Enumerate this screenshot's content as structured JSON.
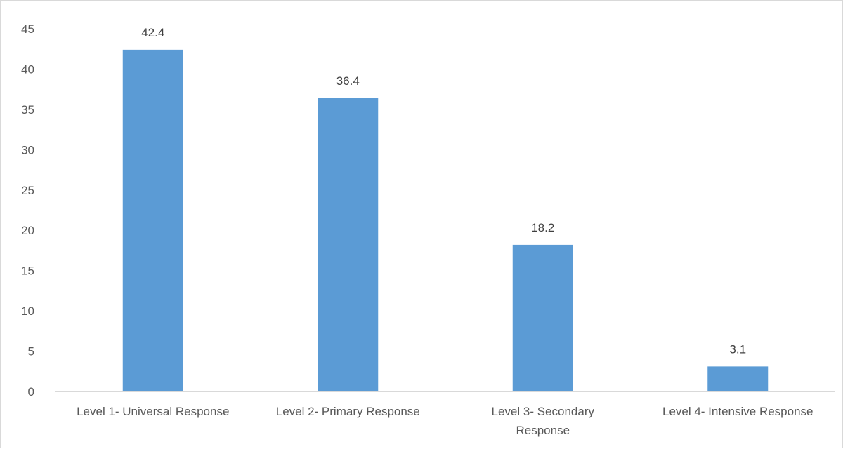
{
  "chart_data": {
    "type": "bar",
    "categories": [
      [
        "Level 1- Universal Response"
      ],
      [
        "Level 2- Primary Response"
      ],
      [
        "Level 3- Secondary",
        "Response"
      ],
      [
        "Level 4- Intensive Response"
      ]
    ],
    "values": [
      42.4,
      36.4,
      18.2,
      3.1
    ],
    "value_labels": [
      "42.4",
      "36.4",
      "18.2",
      "3.1"
    ],
    "yticks": [
      "0",
      "5",
      "10",
      "15",
      "20",
      "25",
      "30",
      "35",
      "40",
      "45"
    ],
    "ylim": [
      0,
      45
    ],
    "bar_color": "#5b9bd5",
    "axis_color": "#d9d9d9",
    "grid": false,
    "legend": "none"
  }
}
